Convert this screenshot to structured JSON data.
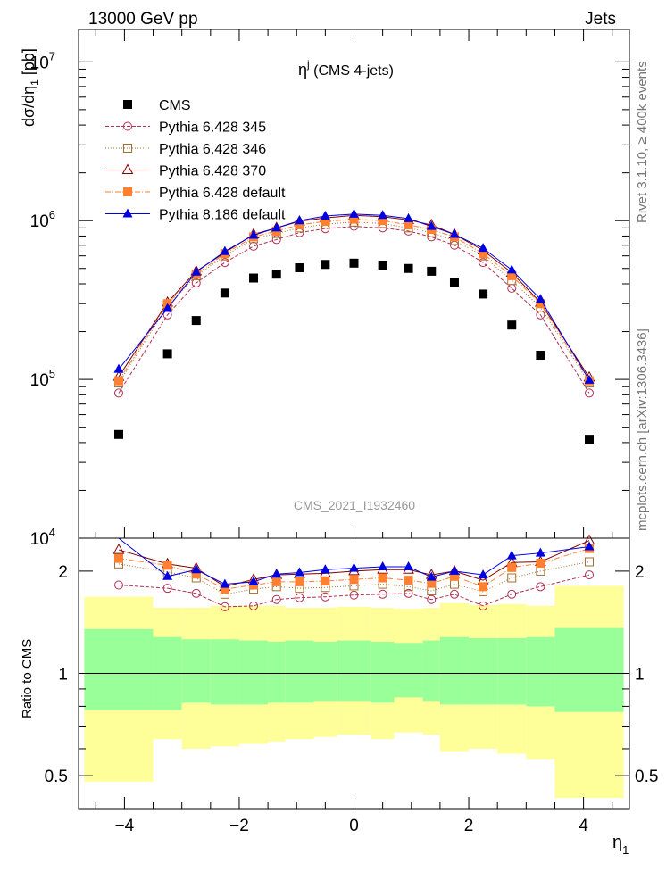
{
  "header": {
    "left": "13000 GeV pp",
    "right": "Jets",
    "title_sym": "η",
    "title_sup": "j",
    "title_rest": " (CMS 4-jets)",
    "watermark": "CMS_2021_I1932460"
  },
  "side": {
    "rivet": "Rivet 3.1.10, ≥ 400k events",
    "mcplots": "mcplots.cern.ch [arXiv:1306.3436]"
  },
  "axes": {
    "ylabel_main": "dσ/dη",
    "ylabel_main_sub": "1",
    "ylabel_main_unit": " [pb]",
    "ylabel_ratio": "Ratio to CMS",
    "xlabel": "η",
    "xlabel_sub": "1",
    "xticks": [
      "−4",
      "−2",
      "0",
      "2",
      "4"
    ],
    "yticks_main": [
      "10",
      "10",
      "10",
      "10"
    ],
    "yticks_main_exp": [
      "4",
      "5",
      "6",
      "7"
    ],
    "yticks_ratio": [
      "0.5",
      "1",
      "2"
    ]
  },
  "legend": [
    "CMS",
    "Pythia 6.428 345",
    "Pythia 6.428 346",
    "Pythia 6.428 370",
    "Pythia 6.428 default",
    "Pythia 8.186 default"
  ],
  "colors": {
    "cms": "#000000",
    "p345": "#b03050",
    "p346": "#a07030",
    "p370": "#800000",
    "pdef": "#ff8030",
    "p8": "#0000e0",
    "band_inner": "#99ff99",
    "band_outer": "#ffff99"
  },
  "chart_data": [
    {
      "type": "scatter",
      "title": "η^j (CMS 4-jets)",
      "xlabel": "η_1",
      "ylabel": "dσ/dη_1 [pb]",
      "yscale": "log",
      "xlim": [
        -4.8,
        4.8
      ],
      "ylim": [
        10000,
        16000000
      ],
      "x": [
        -4.1,
        -3.25,
        -2.75,
        -2.25,
        -1.75,
        -1.35,
        -0.95,
        -0.5,
        0,
        0.5,
        0.95,
        1.35,
        1.75,
        2.25,
        2.75,
        3.25,
        4.1
      ],
      "series": [
        {
          "name": "CMS",
          "marker": "filled-square",
          "values": [
            45000,
            145000,
            235000,
            350000,
            435000,
            460000,
            505000,
            530000,
            540000,
            525000,
            500000,
            480000,
            410000,
            345000,
            220000,
            142000,
            42000
          ]
        },
        {
          "name": "Pythia 6.428 345",
          "marker": "open-circle",
          "values": [
            82000,
            255000,
            405000,
            545000,
            690000,
            760000,
            840000,
            890000,
            920000,
            900000,
            860000,
            790000,
            700000,
            545000,
            375000,
            255000,
            82000
          ]
        },
        {
          "name": "Pythia 6.428 346",
          "marker": "open-square",
          "values": [
            95000,
            290000,
            450000,
            600000,
            770000,
            830000,
            900000,
            950000,
            980000,
            960000,
            900000,
            840000,
            750000,
            600000,
            420000,
            285000,
            95000
          ]
        },
        {
          "name": "Pythia 6.428 370",
          "marker": "open-triangle",
          "values": [
            104000,
            305000,
            480000,
            630000,
            820000,
            900000,
            990000,
            1040000,
            1080000,
            1060000,
            1010000,
            940000,
            820000,
            650000,
            470000,
            305000,
            103000
          ]
        },
        {
          "name": "Pythia 6.428 default",
          "marker": "filled-square",
          "values": [
            98000,
            300000,
            460000,
            620000,
            790000,
            860000,
            940000,
            990000,
            1020000,
            1000000,
            940000,
            880000,
            790000,
            620000,
            450000,
            300000,
            98000
          ]
        },
        {
          "name": "Pythia 8.186 default",
          "marker": "filled-triangle",
          "values": [
            116000,
            280000,
            475000,
            640000,
            810000,
            900000,
            1000000,
            1070000,
            1100000,
            1080000,
            1030000,
            920000,
            820000,
            670000,
            490000,
            320000,
            99000
          ]
        }
      ]
    },
    {
      "type": "scatter",
      "ylabel": "Ratio to CMS",
      "xlabel": "η_1",
      "yscale": "log",
      "xlim": [
        -4.8,
        4.8
      ],
      "ylim": [
        0.4,
        2.5
      ],
      "x": [
        -4.1,
        -3.25,
        -2.75,
        -2.25,
        -1.75,
        -1.35,
        -0.95,
        -0.5,
        0,
        0.5,
        0.95,
        1.35,
        1.75,
        2.25,
        2.75,
        3.25,
        4.1
      ],
      "bin_edges": [
        -4.7,
        -3.5,
        -3.0,
        -2.5,
        -2.0,
        -1.5,
        -1.2,
        -0.7,
        -0.3,
        0.3,
        0.7,
        1.2,
        1.5,
        2.0,
        2.5,
        3.0,
        3.5,
        4.7
      ],
      "band_inner": {
        "lo": [
          0.78,
          0.78,
          0.82,
          0.81,
          0.81,
          0.82,
          0.82,
          0.83,
          0.83,
          0.82,
          0.85,
          0.83,
          0.81,
          0.81,
          0.81,
          0.8,
          0.77
        ],
        "hi": [
          1.35,
          1.28,
          1.26,
          1.26,
          1.25,
          1.24,
          1.25,
          1.24,
          1.25,
          1.24,
          1.23,
          1.25,
          1.28,
          1.27,
          1.27,
          1.28,
          1.36
        ]
      },
      "band_outer": {
        "lo": [
          0.48,
          0.64,
          0.6,
          0.61,
          0.62,
          0.63,
          0.64,
          0.65,
          0.66,
          0.64,
          0.67,
          0.66,
          0.59,
          0.6,
          0.58,
          0.56,
          0.43
        ],
        "hi": [
          1.68,
          1.56,
          1.56,
          1.58,
          1.58,
          1.58,
          1.56,
          1.56,
          1.57,
          1.56,
          1.55,
          1.56,
          1.61,
          1.59,
          1.6,
          1.58,
          1.81
        ]
      },
      "series": [
        {
          "name": "Pythia 6.428 345",
          "values": [
            1.82,
            1.78,
            1.72,
            1.57,
            1.58,
            1.65,
            1.67,
            1.68,
            1.7,
            1.71,
            1.72,
            1.65,
            1.71,
            1.58,
            1.71,
            1.8,
            1.95
          ]
        },
        {
          "name": "Pythia 6.428 346",
          "values": [
            2.1,
            1.99,
            1.91,
            1.71,
            1.77,
            1.8,
            1.78,
            1.79,
            1.81,
            1.83,
            1.8,
            1.75,
            1.83,
            1.74,
            1.91,
            2.0,
            2.13
          ]
        },
        {
          "name": "Pythia 6.428 370",
          "values": [
            2.31,
            2.1,
            2.04,
            1.8,
            1.89,
            1.95,
            1.96,
            1.97,
            2.0,
            2.02,
            2.02,
            1.95,
            2.0,
            1.88,
            2.12,
            2.13,
            2.46
          ]
        },
        {
          "name": "Pythia 6.428 default",
          "values": [
            2.18,
            2.08,
            1.96,
            1.77,
            1.82,
            1.86,
            1.86,
            1.87,
            1.89,
            1.91,
            1.88,
            1.84,
            1.93,
            1.8,
            2.05,
            2.11,
            2.33
          ]
        },
        {
          "name": "Pythia 8.186 default",
          "values": [
            2.58,
            1.93,
            2.02,
            1.83,
            1.86,
            1.96,
            1.98,
            2.02,
            2.04,
            2.06,
            2.06,
            1.92,
            2.0,
            1.95,
            2.22,
            2.26,
            2.36
          ]
        }
      ]
    }
  ]
}
